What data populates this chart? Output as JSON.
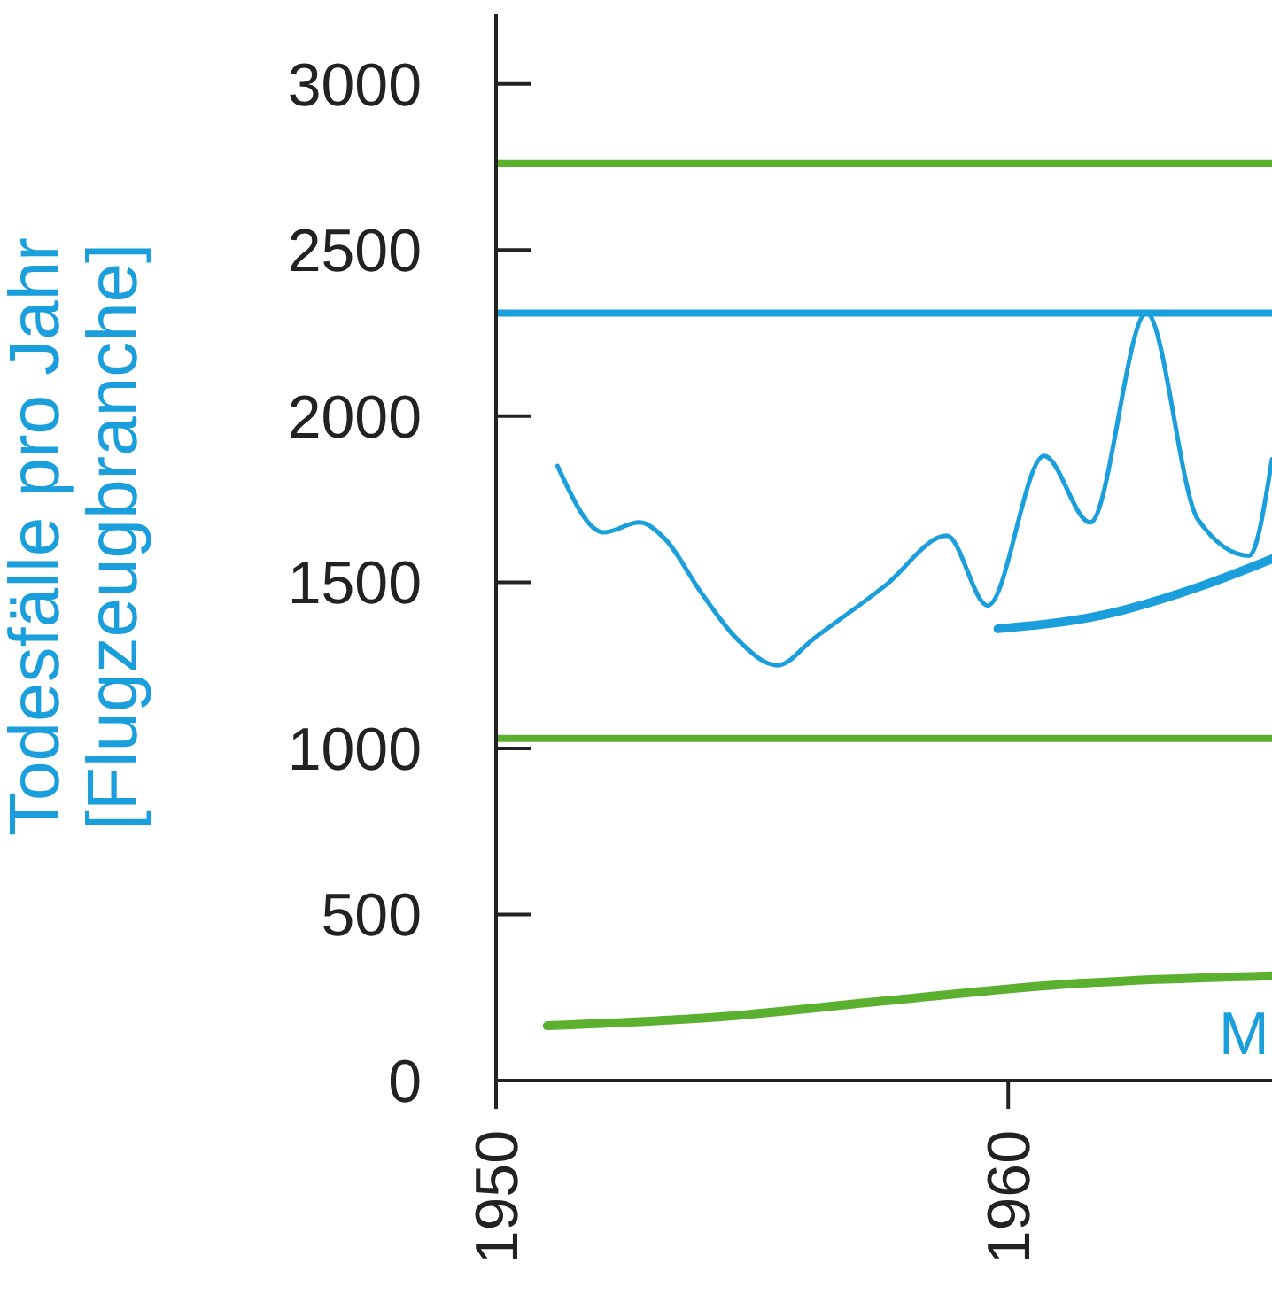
{
  "chart_data": {
    "type": "line",
    "ylabel": "Todesfälle pro Jahr\n[Flugzeugbranche]",
    "xlim": [
      1950,
      1965.15
    ],
    "xticks": [
      1950,
      1960
    ],
    "ylim": [
      0,
      3210
    ],
    "yticks": [
      0,
      500,
      1000,
      1500,
      2000,
      2500,
      3000
    ],
    "grid": false,
    "marker": "none",
    "line_style": "solid",
    "series": [
      {
        "color": "#1a9fdc",
        "x": [
          1951.2,
          1952.1,
          1952.8,
          1953.3,
          1954.0,
          1954.7,
          1955.5,
          1956.2,
          1957.6,
          1958.8,
          1959.6,
          1960.7,
          1961.6,
          1962.7,
          1963.7,
          1964.7,
          1965.15
        ],
        "values": [
          1850,
          1650,
          1680,
          1630,
          1470,
          1330,
          1250,
          1330,
          1490,
          1640,
          1430,
          1880,
          1680,
          2310,
          1690,
          1580,
          1870
        ]
      },
      {
        "color": "#1a9fdc",
        "x": [
          1959.8,
          1961.8,
          1963.8,
          1965.15
        ],
        "values": [
          1360,
          1400,
          1490,
          1570
        ]
      },
      {
        "color": "#5bb030",
        "x": [
          1951,
          1954.2,
          1957.6,
          1961.1,
          1965.15
        ],
        "values": [
          165,
          190,
          240,
          290,
          315
        ]
      }
    ],
    "ref_lines": [
      {
        "axis": "y",
        "value": 2760,
        "color": "#5bb030"
      },
      {
        "axis": "y",
        "value": 2310,
        "color": "#1a9fdc"
      },
      {
        "axis": "y",
        "value": 1030,
        "color": "#5bb030"
      }
    ],
    "annotations": [
      "M"
    ]
  }
}
